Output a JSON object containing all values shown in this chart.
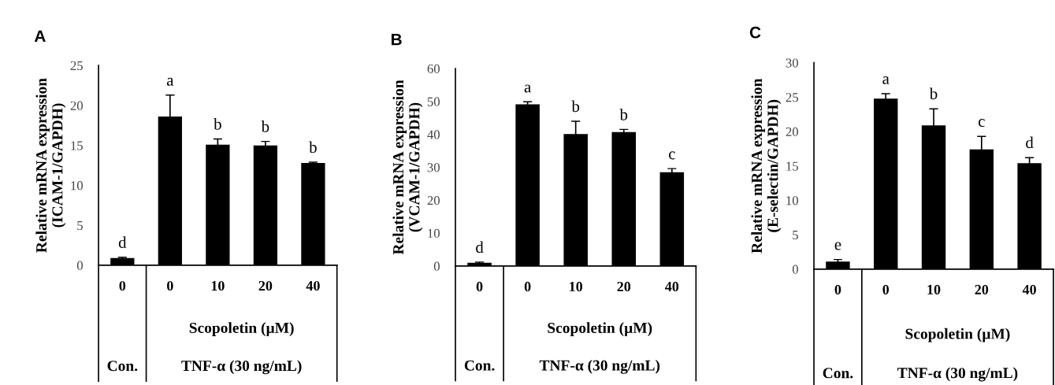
{
  "chart_data": [
    {
      "type": "bar",
      "title": "A",
      "ylabel": "Relative mRNA expression\n(ICAM-1/GAPDH)",
      "categories": [
        "0",
        "0",
        "10",
        "20",
        "40"
      ],
      "values": [
        0.9,
        18.6,
        15.1,
        15.0,
        12.8
      ],
      "errors": [
        0.1,
        2.7,
        0.7,
        0.5,
        0.1
      ],
      "value_labels": [
        "d",
        "a",
        "b",
        "b",
        "b"
      ],
      "color": "#000000",
      "ylim": [
        0,
        25
      ],
      "yticks": [
        0,
        5,
        10,
        15,
        20,
        25
      ],
      "annotations": [
        "Scopoletin (µM)",
        "Con.",
        "TNF-α (30 ng/mL)"
      ]
    },
    {
      "type": "bar",
      "title": "B",
      "ylabel": "Relative mRNA expression\n(VCAM-1/GAPDH)",
      "categories": [
        "0",
        "0",
        "10",
        "20",
        "40"
      ],
      "values": [
        1.0,
        49.1,
        40.1,
        40.7,
        28.5
      ],
      "errors": [
        0.2,
        0.8,
        3.9,
        0.8,
        1.1
      ],
      "value_labels": [
        "d",
        "a",
        "b",
        "b",
        "c"
      ],
      "color": "#000000",
      "ylim": [
        0,
        60
      ],
      "yticks": [
        0,
        10,
        20,
        30,
        40,
        50,
        60
      ],
      "annotations": [
        "Scopoletin (µM)",
        "Con.",
        "TNF-α (30 ng/mL)"
      ]
    },
    {
      "type": "bar",
      "title": "C",
      "ylabel": "Relative mRNA expression\n(E-selectin/GAPDH)",
      "categories": [
        "0",
        "0",
        "10",
        "20",
        "40"
      ],
      "values": [
        1.1,
        24.8,
        20.9,
        17.4,
        15.4
      ],
      "errors": [
        0.3,
        0.7,
        2.4,
        1.9,
        0.8
      ],
      "value_labels": [
        "e",
        "a",
        "b",
        "c",
        "d"
      ],
      "color": "#000000",
      "ylim": [
        0,
        30
      ],
      "yticks": [
        0,
        5,
        10,
        15,
        20,
        25,
        30
      ],
      "annotations": [
        "Scopoletin (µM)",
        "Con.",
        "TNF-α (30 ng/mL)"
      ]
    }
  ]
}
